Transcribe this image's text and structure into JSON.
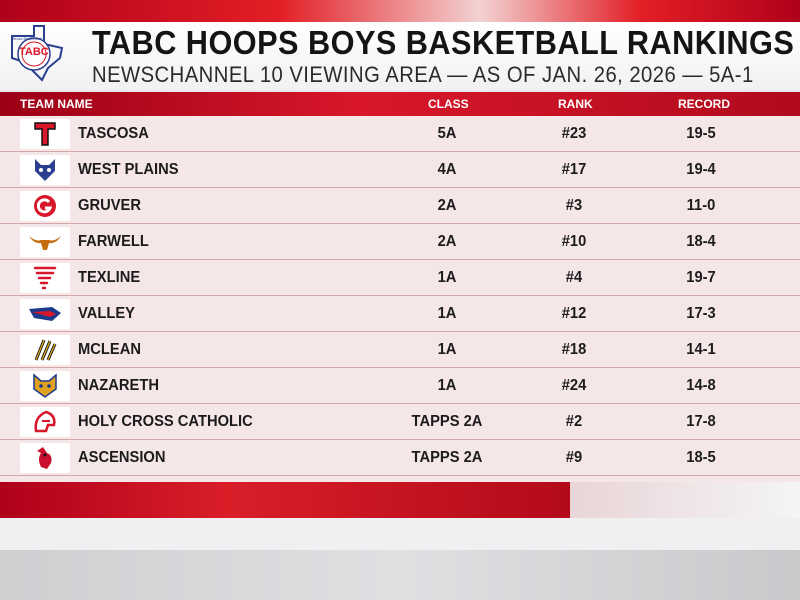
{
  "header": {
    "logo_text": "TABC",
    "logo_ring_text": "Texas Basketball",
    "title": "TABC HOOPS BOYS BASKETBALL RANKINGS",
    "subtitle": "NEWSCHANNEL 10 VIEWING AREA — AS OF JAN. 26, 2026 — 5A-1"
  },
  "columns": {
    "team": "TEAM NAME",
    "class": "CLASS",
    "rank": "RANK",
    "record": "RECORD"
  },
  "colors": {
    "accent_red": "#d8172a",
    "row_bg": "#f5e6e8"
  },
  "rows": [
    {
      "team": "TASCOSA",
      "class": "5A",
      "rank": "#23",
      "record": "19-5",
      "icon": "tascosa-t-logo"
    },
    {
      "team": "WEST PLAINS",
      "class": "4A",
      "rank": "#17",
      "record": "19-4",
      "icon": "wolf-logo"
    },
    {
      "team": "GRUVER",
      "class": "2A",
      "rank": "#3",
      "record": "11-0",
      "icon": "greyhound-g-logo"
    },
    {
      "team": "FARWELL",
      "class": "2A",
      "rank": "#10",
      "record": "18-4",
      "icon": "longhorn-logo"
    },
    {
      "team": "TEXLINE",
      "class": "1A",
      "rank": "#4",
      "record": "19-7",
      "icon": "tornado-logo"
    },
    {
      "team": "VALLEY",
      "class": "1A",
      "rank": "#12",
      "record": "17-3",
      "icon": "patriot-logo"
    },
    {
      "team": "MCLEAN",
      "class": "1A",
      "rank": "#18",
      "record": "14-1",
      "icon": "tiger-claw-logo"
    },
    {
      "team": "NAZARETH",
      "class": "1A",
      "rank": "#24",
      "record": "14-8",
      "icon": "swift-logo"
    },
    {
      "team": "HOLY CROSS CATHOLIC",
      "class": "TAPPS 2A",
      "rank": "#2",
      "record": "17-8",
      "icon": "crusader-logo"
    },
    {
      "team": "ASCENSION",
      "class": "TAPPS 2A",
      "rank": "#9",
      "record": "18-5",
      "icon": "cardinal-logo"
    }
  ]
}
